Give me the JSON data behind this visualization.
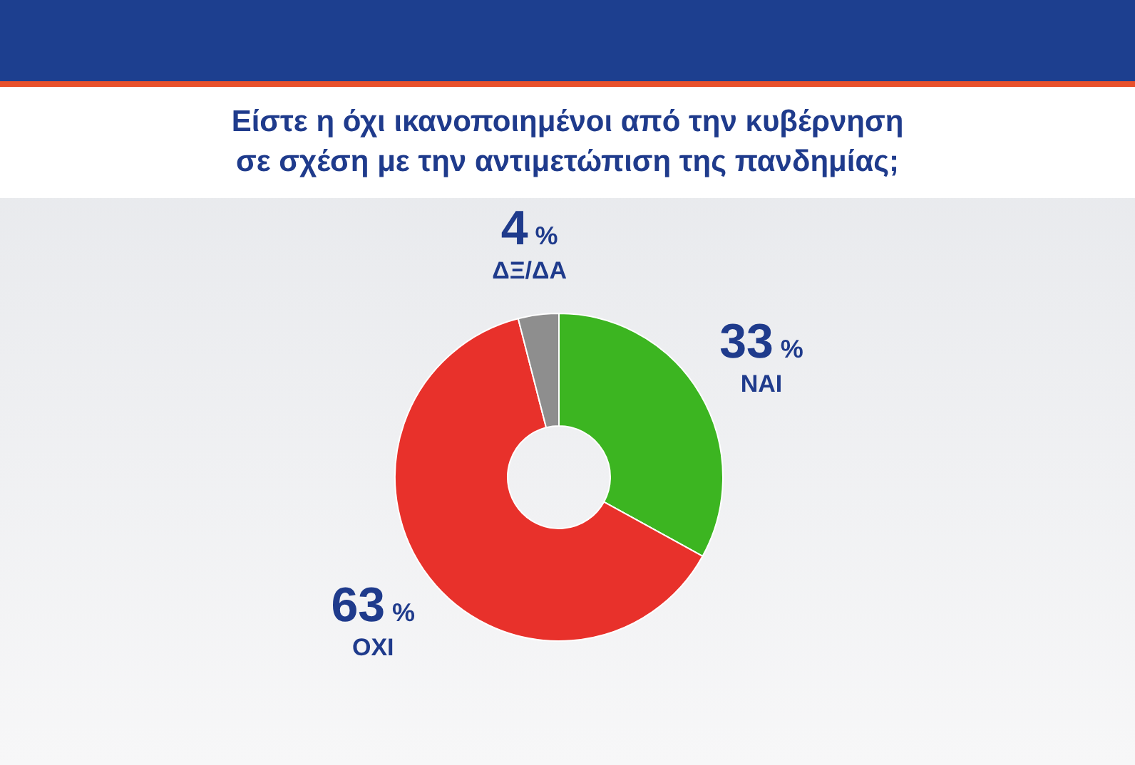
{
  "chart_data": {
    "type": "donut",
    "title": "Είστε η όχι ικανοποιημένοι από την κυβέρνηση σε σχέση με την αντιμετώπιση της πανδημίας;",
    "categories": [
      "ΝΑΙ",
      "ΟΧΙ",
      "ΔΞ/ΔΑ"
    ],
    "values": [
      33,
      63,
      4
    ],
    "colors": [
      "#3cb521",
      "#e8312b",
      "#8e8e8e"
    ],
    "value_labels": [
      "33%",
      "63%",
      "4%"
    ]
  }
}
